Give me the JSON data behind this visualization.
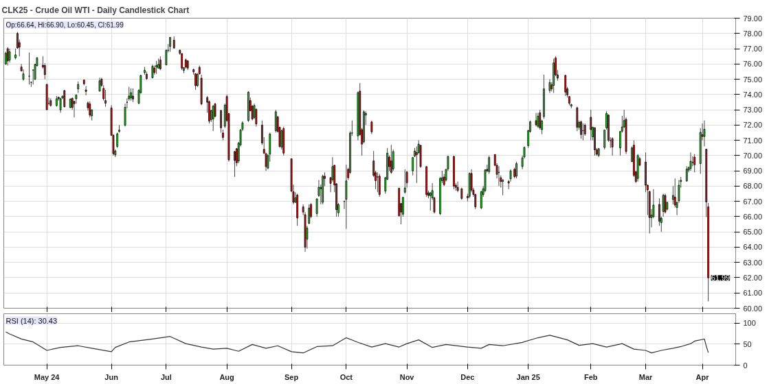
{
  "chart_data": [
    {
      "type": "candlestick",
      "title": "CLK25 - Crude Oil WTI - Daily Candlestick Chart",
      "annotations": [
        "Op:66.64, Hi:66.90, Lo:60.45, Cl:61.99",
        {
          "text": "61.99",
          "x": "2025-04-04",
          "y": 61.99
        }
      ],
      "x": [
        "2024-04-10",
        "2024-04-11",
        "2024-04-12",
        "2024-04-15",
        "2024-04-16",
        "2024-04-17",
        "2024-04-18",
        "2024-04-19",
        "2024-04-22",
        "2024-04-23",
        "2024-04-24",
        "2024-04-25",
        "2024-04-26",
        "2024-04-29",
        "2024-04-30",
        "2024-05-01",
        "2024-05-02",
        "2024-05-03",
        "2024-05-06",
        "2024-05-07",
        "2024-05-08",
        "2024-05-09",
        "2024-05-10",
        "2024-05-13",
        "2024-05-14",
        "2024-05-15",
        "2024-05-16",
        "2024-05-17",
        "2024-05-20",
        "2024-05-21",
        "2024-05-22",
        "2024-05-23",
        "2024-05-24",
        "2024-05-28",
        "2024-05-29",
        "2024-05-30",
        "2024-05-31",
        "2024-06-03",
        "2024-06-04",
        "2024-06-05",
        "2024-06-06",
        "2024-06-07",
        "2024-06-10",
        "2024-06-11",
        "2024-06-12",
        "2024-06-13",
        "2024-06-14",
        "2024-06-17",
        "2024-06-18",
        "2024-06-20",
        "2024-06-21",
        "2024-06-24",
        "2024-06-25",
        "2024-06-26",
        "2024-06-27",
        "2024-06-28",
        "2024-07-01",
        "2024-07-02",
        "2024-07-03",
        "2024-07-05",
        "2024-07-08",
        "2024-07-09",
        "2024-07-10",
        "2024-07-11",
        "2024-07-12",
        "2024-07-15",
        "2024-07-16",
        "2024-07-17",
        "2024-07-18",
        "2024-07-19",
        "2024-07-22",
        "2024-07-23",
        "2024-07-24",
        "2024-07-25",
        "2024-07-26",
        "2024-07-29",
        "2024-07-30",
        "2024-07-31",
        "2024-08-01",
        "2024-08-02",
        "2024-08-05",
        "2024-08-06",
        "2024-08-07",
        "2024-08-08",
        "2024-08-09",
        "2024-08-12",
        "2024-08-13",
        "2024-08-14",
        "2024-08-15",
        "2024-08-16",
        "2024-08-19",
        "2024-08-20",
        "2024-08-21",
        "2024-08-22",
        "2024-08-23",
        "2024-08-26",
        "2024-08-27",
        "2024-08-28",
        "2024-08-29",
        "2024-08-30",
        "2024-09-03",
        "2024-09-04",
        "2024-09-05",
        "2024-09-06",
        "2024-09-09",
        "2024-09-10",
        "2024-09-11",
        "2024-09-12",
        "2024-09-13",
        "2024-09-16",
        "2024-09-17",
        "2024-09-18",
        "2024-09-19",
        "2024-09-20",
        "2024-09-23",
        "2024-09-24",
        "2024-09-25",
        "2024-09-26",
        "2024-09-27",
        "2024-09-30",
        "2024-10-01",
        "2024-10-02",
        "2024-10-03",
        "2024-10-04",
        "2024-10-07",
        "2024-10-08",
        "2024-10-09",
        "2024-10-10",
        "2024-10-11",
        "2024-10-14",
        "2024-10-15",
        "2024-10-16",
        "2024-10-17",
        "2024-10-18",
        "2024-10-21",
        "2024-10-22",
        "2024-10-23",
        "2024-10-24",
        "2024-10-25",
        "2024-10-28",
        "2024-10-29",
        "2024-10-30",
        "2024-10-31",
        "2024-11-01",
        "2024-11-04",
        "2024-11-05",
        "2024-11-06",
        "2024-11-07",
        "2024-11-08",
        "2024-11-11",
        "2024-11-12",
        "2024-11-13",
        "2024-11-14",
        "2024-11-15",
        "2024-11-18",
        "2024-11-19",
        "2024-11-20",
        "2024-11-21",
        "2024-11-22",
        "2024-11-25",
        "2024-11-26",
        "2024-11-27",
        "2024-11-29",
        "2024-12-02",
        "2024-12-03",
        "2024-12-04",
        "2024-12-05",
        "2024-12-06",
        "2024-12-09",
        "2024-12-10",
        "2024-12-11",
        "2024-12-12",
        "2024-12-13",
        "2024-12-16",
        "2024-12-17",
        "2024-12-18",
        "2024-12-19",
        "2024-12-20",
        "2024-12-23",
        "2024-12-24",
        "2024-12-26",
        "2024-12-27",
        "2024-12-30",
        "2024-12-31",
        "2025-01-02",
        "2025-01-03",
        "2025-01-06",
        "2025-01-07",
        "2025-01-08",
        "2025-01-09",
        "2025-01-10",
        "2025-01-13",
        "2025-01-14",
        "2025-01-15",
        "2025-01-16",
        "2025-01-17",
        "2025-01-21",
        "2025-01-22",
        "2025-01-23",
        "2025-01-24",
        "2025-01-27",
        "2025-01-28",
        "2025-01-29",
        "2025-01-30",
        "2025-01-31",
        "2025-02-03",
        "2025-02-04",
        "2025-02-05",
        "2025-02-06",
        "2025-02-07",
        "2025-02-10",
        "2025-02-11",
        "2025-02-12",
        "2025-02-13",
        "2025-02-14",
        "2025-02-18",
        "2025-02-19",
        "2025-02-20",
        "2025-02-21",
        "2025-02-24",
        "2025-02-25",
        "2025-02-26",
        "2025-02-27",
        "2025-02-28",
        "2025-03-03",
        "2025-03-04",
        "2025-03-05",
        "2025-03-06",
        "2025-03-07",
        "2025-03-10",
        "2025-03-11",
        "2025-03-12",
        "2025-03-13",
        "2025-03-14",
        "2025-03-17",
        "2025-03-18",
        "2025-03-19",
        "2025-03-20",
        "2025-03-21",
        "2025-03-24",
        "2025-03-25",
        "2025-03-26",
        "2025-03-27",
        "2025-03-28",
        "2025-03-31",
        "2025-04-01",
        "2025-04-02",
        "2025-04-03",
        "2025-04-04"
      ],
      "ohlc": [
        [
          76.0,
          76.8,
          75.95,
          76.7
        ],
        [
          77.0,
          77.1,
          75.9,
          76.2
        ],
        [
          76.25,
          77.0,
          76.1,
          76.8
        ],
        [
          76.4,
          77.0,
          76.3,
          76.6
        ],
        [
          78.0,
          78.1,
          77.0,
          77.05
        ],
        [
          77.4,
          77.6,
          76.5,
          77.1
        ],
        [
          75.8,
          76.0,
          75.5,
          75.55
        ],
        [
          75.0,
          75.65,
          74.9,
          75.35
        ],
        [
          75.2,
          76.75,
          74.65,
          75.2
        ],
        [
          74.8,
          74.85,
          74.5,
          74.8
        ],
        [
          75.6,
          75.65,
          74.65,
          75.6
        ],
        [
          75.0,
          76.0,
          74.95,
          75.98
        ],
        [
          75.88,
          76.45,
          75.85,
          76.4
        ],
        [
          75.92,
          76.5,
          75.7,
          75.8
        ],
        [
          75.9,
          76.05,
          75.0,
          75.3
        ],
        [
          74.66,
          74.7,
          73.0,
          73.0
        ],
        [
          73.43,
          73.8,
          73.3,
          73.43
        ],
        [
          73.6,
          73.75,
          73.2,
          73.28
        ],
        [
          73.28,
          73.9,
          73.2,
          73.72
        ],
        [
          73.82,
          73.85,
          73.6,
          73.72
        ],
        [
          73.0,
          73.8,
          72.8,
          73.72
        ],
        [
          73.78,
          73.9,
          73.7,
          73.9
        ],
        [
          74.26,
          74.3,
          73.15,
          73.2
        ],
        [
          73.15,
          73.75,
          73.1,
          73.7
        ],
        [
          73.75,
          73.8,
          73.0,
          73.15
        ],
        [
          73.55,
          73.6,
          72.5,
          73.4
        ],
        [
          73.72,
          74.0,
          73.4,
          73.97
        ],
        [
          74.37,
          74.85,
          74.1,
          74.66
        ],
        [
          74.95,
          74.95,
          74.6,
          74.7
        ],
        [
          74.3,
          74.55,
          73.95,
          74.2
        ],
        [
          73.45,
          73.55,
          72.95,
          73.13
        ],
        [
          73.38,
          73.55,
          72.5,
          72.65
        ],
        [
          72.6,
          73.0,
          72.3,
          73.0
        ],
        [
          74.22,
          75.1,
          74.2,
          74.9
        ],
        [
          75.0,
          75.1,
          74.5,
          74.6
        ],
        [
          74.4,
          74.6,
          73.6,
          73.72
        ],
        [
          73.6,
          74.3,
          73.2,
          73.43
        ],
        [
          73.12,
          73.3,
          71.3,
          71.33
        ],
        [
          71.33,
          71.4,
          70.0,
          70.12
        ],
        [
          70.05,
          70.4,
          69.9,
          70.3
        ],
        [
          70.6,
          71.5,
          70.5,
          71.43
        ],
        [
          71.58,
          72.0,
          71.5,
          71.67
        ],
        [
          71.99,
          73.4,
          71.9,
          73.16
        ],
        [
          73.49,
          73.75,
          73.1,
          73.49
        ],
        [
          73.72,
          74.5,
          73.6,
          73.9
        ],
        [
          73.78,
          74.4,
          73.6,
          74.12
        ],
        [
          73.9,
          74.4,
          73.5,
          73.7
        ],
        [
          73.43,
          74.35,
          73.35,
          74.26
        ],
        [
          74.12,
          75.3,
          74.05,
          75.25
        ],
        [
          75.44,
          75.8,
          75.3,
          75.58
        ],
        [
          75.33,
          75.5,
          74.95,
          75.04
        ],
        [
          75.1,
          75.95,
          75.05,
          75.85
        ],
        [
          75.73,
          75.9,
          75.3,
          75.44
        ],
        [
          75.8,
          76.2,
          75.35,
          75.9
        ],
        [
          75.73,
          76.35,
          75.7,
          75.98
        ],
        [
          76.27,
          76.5,
          75.6,
          75.68
        ],
        [
          75.95,
          76.95,
          75.9,
          76.9
        ],
        [
          76.9,
          77.3,
          76.75,
          76.9
        ],
        [
          77.15,
          77.75,
          76.8,
          77.74
        ],
        [
          77.56,
          77.8,
          77.0,
          77.05
        ],
        [
          76.9,
          76.95,
          76.6,
          76.7
        ],
        [
          76.68,
          76.7,
          75.6,
          75.73
        ],
        [
          75.58,
          75.8,
          75.4,
          75.76
        ],
        [
          76.27,
          76.35,
          75.7,
          75.8
        ],
        [
          76.2,
          76.25,
          75.6,
          75.73
        ],
        [
          75.63,
          75.7,
          75.3,
          75.48
        ],
        [
          75.36,
          75.4,
          74.3,
          74.58
        ],
        [
          74.58,
          75.4,
          74.5,
          75.32
        ],
        [
          75.78,
          75.9,
          75.3,
          75.36
        ],
        [
          75.07,
          75.3,
          73.3,
          73.38
        ],
        [
          73.8,
          73.9,
          72.8,
          73.49
        ],
        [
          73.53,
          73.6,
          72.1,
          72.26
        ],
        [
          72.36,
          73.0,
          72.2,
          72.95
        ],
        [
          72.4,
          73.3,
          71.6,
          73.24
        ],
        [
          73.38,
          73.45,
          72.5,
          72.57
        ],
        [
          72.95,
          73.0,
          71.5,
          71.82
        ],
        [
          71.48,
          71.7,
          71.0,
          71.19
        ],
        [
          71.92,
          73.4,
          71.8,
          73.3
        ],
        [
          73.87,
          74.0,
          72.2,
          72.3
        ],
        [
          72.75,
          72.8,
          69.6,
          69.72
        ],
        [
          70.26,
          70.3,
          68.6,
          69.68
        ],
        [
          70.45,
          70.5,
          69.3,
          69.53
        ],
        [
          69.65,
          70.9,
          69.5,
          70.82
        ],
        [
          70.7,
          71.75,
          70.6,
          71.67
        ],
        [
          71.73,
          72.25,
          71.6,
          72.14
        ],
        [
          72.3,
          74.2,
          72.2,
          74.16
        ],
        [
          73.6,
          73.8,
          72.9,
          72.94
        ],
        [
          73.24,
          73.3,
          72.3,
          72.4
        ],
        [
          72.5,
          73.4,
          72.4,
          73.28
        ],
        [
          73.02,
          73.1,
          71.9,
          72.07
        ],
        [
          71.99,
          72.3,
          70.7,
          70.82
        ],
        [
          70.41,
          71.2,
          70.1,
          70.16
        ],
        [
          70.12,
          70.2,
          69.0,
          69.28
        ],
        [
          69.18,
          70.1,
          69.1,
          70.0
        ],
        [
          70.09,
          71.5,
          69.6,
          71.41
        ],
        [
          71.63,
          73.0,
          71.5,
          72.87
        ],
        [
          72.53,
          72.6,
          71.5,
          71.58
        ],
        [
          71.85,
          71.9,
          70.5,
          70.6
        ],
        [
          70.56,
          71.7,
          70.4,
          71.63
        ],
        [
          71.77,
          71.9,
          70.0,
          70.16
        ],
        [
          69.79,
          69.8,
          67.6,
          67.67
        ],
        [
          67.63,
          68.1,
          66.8,
          66.94
        ],
        [
          66.94,
          67.6,
          66.9,
          67.23
        ],
        [
          67.41,
          67.5,
          65.4,
          65.91
        ],
        [
          66.64,
          66.8,
          66.1,
          66.3
        ],
        [
          66.13,
          66.3,
          63.7,
          64.0
        ],
        [
          64.52,
          65.4,
          63.9,
          65.25
        ],
        [
          65.57,
          66.8,
          65.5,
          66.56
        ],
        [
          66.79,
          66.9,
          65.9,
          66.01
        ],
        [
          66.2,
          67.2,
          66.0,
          67.16
        ],
        [
          67.38,
          68.4,
          67.3,
          67.92
        ],
        [
          67.82,
          68.1,
          66.8,
          67.92
        ],
        [
          66.94,
          68.75,
          66.8,
          68.65
        ],
        [
          68.65,
          68.9,
          68.0,
          68.5
        ],
        [
          68.55,
          68.6,
          67.6,
          68.18
        ],
        [
          68.42,
          69.9,
          68.3,
          69.28
        ],
        [
          69.36,
          69.4,
          67.6,
          68.07
        ],
        [
          68.15,
          68.2,
          66.0,
          66.45
        ],
        [
          66.25,
          66.9,
          66.0,
          66.79
        ],
        [
          67.0,
          67.05,
          66.5,
          67.0
        ],
        [
          67.13,
          69.4,
          65.2,
          68.34
        ],
        [
          69.1,
          69.2,
          68.4,
          68.55
        ],
        [
          68.9,
          71.6,
          68.8,
          71.48
        ],
        [
          71.48,
          72.3,
          71.3,
          71.48
        ],
        [
          71.29,
          74.2,
          71.0,
          74.12
        ],
        [
          74.22,
          74.75,
          71.3,
          71.38
        ],
        [
          71.7,
          71.8,
          70.0,
          70.75
        ],
        [
          70.9,
          72.95,
          70.8,
          72.87
        ],
        [
          72.65,
          72.9,
          72.0,
          72.76
        ],
        [
          72.2,
          72.3,
          71.4,
          71.55
        ],
        [
          69.65,
          70.3,
          68.6,
          68.7
        ],
        [
          68.88,
          69.0,
          67.8,
          68.36
        ],
        [
          68.6,
          68.9,
          67.6,
          68.6
        ],
        [
          68.65,
          68.8,
          67.3,
          67.45
        ],
        [
          67.67,
          68.6,
          67.5,
          68.55
        ],
        [
          68.45,
          70.5,
          68.4,
          70.16
        ],
        [
          69.9,
          70.0,
          69.0,
          69.28
        ],
        [
          69.65,
          70.7,
          68.8,
          68.9
        ],
        [
          69.13,
          70.4,
          69.0,
          70.26
        ],
        [
          67.85,
          67.9,
          66.0,
          66.06
        ],
        [
          66.86,
          66.9,
          65.5,
          66.3
        ],
        [
          66.16,
          67.3,
          66.0,
          67.26
        ],
        [
          67.6,
          69.1,
          67.5,
          67.88
        ],
        [
          68.92,
          69.0,
          67.9,
          68.22
        ],
        [
          69.0,
          69.9,
          68.7,
          69.87
        ],
        [
          69.97,
          70.5,
          69.9,
          70.3
        ],
        [
          70.2,
          70.6,
          68.2,
          70.06
        ],
        [
          70.2,
          71.0,
          70.1,
          70.75
        ],
        [
          70.67,
          70.7,
          69.2,
          69.28
        ],
        [
          69.28,
          69.3,
          67.3,
          67.45
        ],
        [
          67.56,
          67.7,
          67.2,
          67.38
        ],
        [
          67.38,
          67.6,
          66.4,
          67.56
        ],
        [
          67.23,
          68.2,
          67.1,
          67.71
        ],
        [
          67.23,
          67.3,
          66.2,
          66.3
        ],
        [
          66.2,
          68.6,
          66.1,
          68.5
        ],
        [
          68.36,
          69.0,
          68.2,
          68.55
        ],
        [
          68.6,
          68.8,
          68.0,
          68.1
        ],
        [
          68.4,
          69.1,
          68.3,
          69.1
        ],
        [
          69.13,
          70.0,
          69.0,
          69.94
        ],
        [
          69.94,
          70.0,
          67.8,
          68.0
        ],
        [
          68.06,
          68.2,
          67.7,
          67.92
        ],
        [
          67.92,
          68.3,
          67.6,
          67.71
        ],
        [
          67.82,
          67.9,
          67.1,
          67.19
        ],
        [
          67.33,
          67.5,
          67.0,
          67.23
        ],
        [
          67.33,
          68.9,
          67.2,
          68.83
        ],
        [
          68.83,
          69.1,
          67.6,
          67.74
        ],
        [
          67.74,
          67.9,
          67.3,
          67.45
        ],
        [
          67.45,
          67.5,
          66.5,
          66.64
        ],
        [
          66.57,
          67.7,
          66.5,
          67.63
        ],
        [
          67.45,
          68.0,
          67.3,
          67.82
        ],
        [
          67.71,
          69.1,
          67.6,
          69.06
        ],
        [
          69.1,
          69.4,
          68.9,
          69.0
        ],
        [
          68.95,
          70.0,
          68.8,
          69.87
        ],
        [
          70.06,
          70.1,
          69.3,
          69.36
        ],
        [
          69.36,
          69.5,
          68.5,
          68.77
        ],
        [
          68.9,
          69.3,
          68.0,
          68.9
        ],
        [
          68.55,
          68.7,
          67.9,
          68.3
        ],
        [
          68.3,
          68.45,
          67.4,
          68.4
        ],
        [
          68.3,
          68.4,
          67.8,
          68.2
        ],
        [
          68.48,
          69.1,
          68.3,
          69.0
        ],
        [
          69.1,
          69.2,
          68.5,
          68.62
        ],
        [
          68.65,
          69.6,
          68.5,
          69.47
        ],
        [
          69.28,
          70.0,
          69.1,
          69.85
        ],
        [
          69.91,
          70.6,
          69.8,
          70.53
        ],
        [
          70.65,
          71.7,
          70.5,
          71.63
        ],
        [
          71.58,
          72.3,
          71.5,
          72.21
        ],
        [
          72.29,
          72.8,
          71.9,
          72.02
        ],
        [
          71.92,
          72.8,
          71.8,
          72.58
        ],
        [
          72.8,
          73.0,
          71.7,
          71.82
        ],
        [
          71.7,
          72.35,
          71.4,
          72.26
        ],
        [
          72.55,
          75.3,
          72.4,
          74.37
        ],
        [
          74.26,
          75.0,
          74.1,
          74.78
        ],
        [
          74.63,
          74.8,
          74.2,
          74.37
        ],
        [
          74.6,
          76.35,
          74.1,
          76.07
        ],
        [
          76.39,
          76.5,
          75.2,
          75.29
        ],
        [
          75.29,
          75.6,
          74.9,
          75.07
        ],
        [
          75.25,
          75.3,
          73.9,
          74.16
        ],
        [
          74.37,
          74.5,
          73.8,
          73.97
        ],
        [
          73.87,
          73.9,
          73.3,
          73.43
        ],
        [
          73.24,
          73.4,
          73.1,
          73.34
        ],
        [
          73.13,
          73.2,
          71.6,
          71.85
        ],
        [
          71.85,
          72.3,
          71.7,
          72.17
        ],
        [
          72.21,
          72.3,
          71.1,
          71.38
        ],
        [
          71.63,
          72.1,
          71.0,
          71.63
        ],
        [
          71.99,
          72.1,
          71.3,
          71.41
        ],
        [
          72.51,
          73.0,
          71.0,
          71.7
        ],
        [
          71.23,
          71.9,
          71.0,
          71.85
        ],
        [
          71.82,
          71.85,
          70.0,
          70.38
        ],
        [
          70.38,
          70.5,
          70.0,
          70.09
        ],
        [
          70.01,
          70.5,
          69.9,
          70.45
        ],
        [
          70.53,
          71.7,
          70.4,
          71.67
        ],
        [
          71.82,
          72.9,
          71.7,
          72.76
        ],
        [
          72.65,
          72.7,
          70.9,
          71.0
        ],
        [
          70.97,
          71.2,
          70.5,
          70.97
        ],
        [
          71.11,
          71.2,
          70.0,
          70.56
        ],
        [
          70.5,
          71.6,
          70.0,
          71.58
        ],
        [
          71.6,
          72.6,
          71.5,
          71.88
        ],
        [
          71.88,
          73.0,
          71.8,
          72.3
        ],
        [
          72.38,
          72.5,
          70.1,
          70.26
        ],
        [
          69.6,
          70.6,
          69.6,
          70.5
        ],
        [
          70.68,
          71.0,
          68.6,
          68.7
        ],
        [
          68.93,
          69.0,
          68.2,
          68.3
        ],
        [
          68.5,
          70.1,
          68.3,
          70.0
        ],
        [
          69.8,
          69.9,
          69.3,
          69.37
        ],
        [
          69.58,
          70.2,
          67.6,
          68.06
        ],
        [
          68.06,
          68.1,
          66.1,
          67.75
        ],
        [
          67.64,
          67.7,
          64.9,
          65.94
        ],
        [
          65.94,
          66.5,
          65.3,
          66.1
        ],
        [
          66.0,
          67.8,
          65.9,
          66.76
        ],
        [
          66.8,
          67.2,
          65.4,
          65.7
        ],
        [
          65.6,
          66.0,
          65.0,
          65.9
        ],
        [
          66.34,
          67.5,
          66.0,
          67.4
        ],
        [
          67.39,
          67.5,
          66.2,
          66.3
        ],
        [
          66.49,
          67.0,
          66.4,
          66.92
        ],
        [
          67.12,
          68.0,
          66.8,
          67.39
        ],
        [
          67.28,
          68.5,
          66.6,
          66.76
        ],
        [
          66.6,
          67.0,
          66.1,
          66.92
        ],
        [
          67.04,
          68.4,
          66.9,
          68.06
        ],
        [
          68.3,
          68.6,
          67.9,
          68.38
        ],
        [
          68.33,
          69.3,
          68.3,
          69.11
        ],
        [
          69.05,
          69.3,
          68.9,
          69.2
        ],
        [
          69.16,
          70.2,
          69.0,
          69.63
        ],
        [
          69.55,
          69.95,
          69.3,
          69.55
        ],
        [
          69.9,
          70.1,
          68.9,
          69.4
        ],
        [
          69.48,
          71.8,
          68.8,
          71.52
        ],
        [
          71.36,
          72.1,
          71.0,
          71.25
        ],
        [
          71.25,
          72.3,
          70.6,
          71.72
        ],
        [
          70.42,
          70.42,
          65.97,
          66.96
        ],
        [
          66.64,
          66.9,
          60.45,
          61.99
        ]
      ],
      "xlim": [
        "2024-04-09",
        "2025-04-18"
      ],
      "xticks": [
        {
          "value": "2024-05-01",
          "label": null
        },
        {
          "value": "2024-06-03",
          "label": null
        },
        {
          "value": "2024-07-01",
          "label": null
        },
        {
          "value": "2024-08-01",
          "label": null
        },
        {
          "value": "2024-09-03",
          "label": null
        },
        {
          "value": "2024-10-01",
          "label": null
        },
        {
          "value": "2024-11-01",
          "label": null
        },
        {
          "value": "2024-12-02",
          "label": null
        },
        {
          "value": "2025-01-02",
          "label": null
        },
        {
          "value": "2025-02-03",
          "label": null
        },
        {
          "value": "2025-03-03",
          "label": null
        },
        {
          "value": "2025-04-01",
          "label": null
        }
      ],
      "ylim": [
        60,
        79
      ],
      "yticks": [
        {
          "value": 60,
          "label": "60.00"
        },
        {
          "value": 61,
          "label": "61.00"
        },
        {
          "value": 62,
          "label": "62.00"
        },
        {
          "value": 63,
          "label": "63.00"
        },
        {
          "value": 64,
          "label": "64.00"
        },
        {
          "value": 65,
          "label": "65.00"
        },
        {
          "value": 66,
          "label": "66.00"
        },
        {
          "value": 67,
          "label": "67.00"
        },
        {
          "value": 68,
          "label": "68.00"
        },
        {
          "value": 69,
          "label": "69.00"
        },
        {
          "value": 70,
          "label": "70.00"
        },
        {
          "value": 71,
          "label": "71.00"
        },
        {
          "value": 72,
          "label": "72.00"
        },
        {
          "value": 73,
          "label": "73.00"
        },
        {
          "value": 74,
          "label": "74.00"
        },
        {
          "value": 75,
          "label": "75.00"
        },
        {
          "value": 76,
          "label": "76.00"
        },
        {
          "value": 77,
          "label": "77.00"
        },
        {
          "value": 78,
          "label": "78.00"
        },
        {
          "value": 79,
          "label": "79.00"
        }
      ],
      "grid": true,
      "tick_labels": "y"
    },
    {
      "type": "line",
      "title": "RSI (14): 30.43",
      "x": [
        "2024-04-10",
        "2024-04-12",
        "2024-04-18",
        "2024-04-24",
        "2024-05-01",
        "2024-05-08",
        "2024-05-17",
        "2024-05-24",
        "2024-06-03",
        "2024-06-05",
        "2024-06-12",
        "2024-06-24",
        "2024-07-03",
        "2024-07-11",
        "2024-07-19",
        "2024-07-25",
        "2024-08-01",
        "2024-08-07",
        "2024-08-14",
        "2024-08-21",
        "2024-08-27",
        "2024-09-03",
        "2024-09-09",
        "2024-09-16",
        "2024-09-24",
        "2024-10-01",
        "2024-10-07",
        "2024-10-14",
        "2024-10-21",
        "2024-10-28",
        "2024-11-01",
        "2024-11-07",
        "2024-11-14",
        "2024-11-21",
        "2024-12-02",
        "2024-12-09",
        "2024-12-13",
        "2024-12-20",
        "2024-12-30",
        "2025-01-07",
        "2025-01-13",
        "2025-01-22",
        "2025-01-28",
        "2025-02-04",
        "2025-02-11",
        "2025-02-19",
        "2025-02-25",
        "2025-03-03",
        "2025-03-06",
        "2025-03-11",
        "2025-03-17",
        "2025-03-21",
        "2025-03-26",
        "2025-03-28",
        "2025-04-01",
        "2025-04-02",
        "2025-04-03",
        "2025-04-04"
      ],
      "series": [
        {
          "color": "#333333",
          "values": [
            79,
            74,
            62,
            55,
            35,
            42,
            46,
            40,
            32,
            42,
            55,
            62,
            68,
            51,
            43,
            38,
            40,
            33,
            49,
            40,
            46,
            32,
            29,
            44,
            46,
            65,
            54,
            43,
            51,
            43,
            51,
            60,
            42,
            49,
            43,
            40,
            49,
            46,
            54,
            65,
            71,
            60,
            47,
            51,
            43,
            51,
            38,
            35,
            29,
            35,
            40,
            44,
            51,
            57,
            61,
            62,
            45,
            30
          ]
        }
      ],
      "xlim": [
        "2024-04-09",
        "2025-04-18"
      ],
      "xticks": [
        {
          "value": "2024-05-01",
          "label": "May 24"
        },
        {
          "value": "2024-06-03",
          "label": "Jun"
        },
        {
          "value": "2024-07-01",
          "label": "Jul"
        },
        {
          "value": "2024-08-01",
          "label": "Aug"
        },
        {
          "value": "2024-09-03",
          "label": "Sep"
        },
        {
          "value": "2024-10-01",
          "label": "Oct"
        },
        {
          "value": "2024-11-01",
          "label": "Nov"
        },
        {
          "value": "2024-12-02",
          "label": "Dec"
        },
        {
          "value": "2025-01-02",
          "label": "Jan 25"
        },
        {
          "value": "2025-02-03",
          "label": "Feb"
        },
        {
          "value": "2025-03-03",
          "label": "Mar"
        },
        {
          "value": "2025-04-01",
          "label": "Apr"
        }
      ],
      "ylim": [
        0,
        122
      ],
      "yticks": [
        0,
        50,
        100
      ],
      "grid": true
    }
  ]
}
